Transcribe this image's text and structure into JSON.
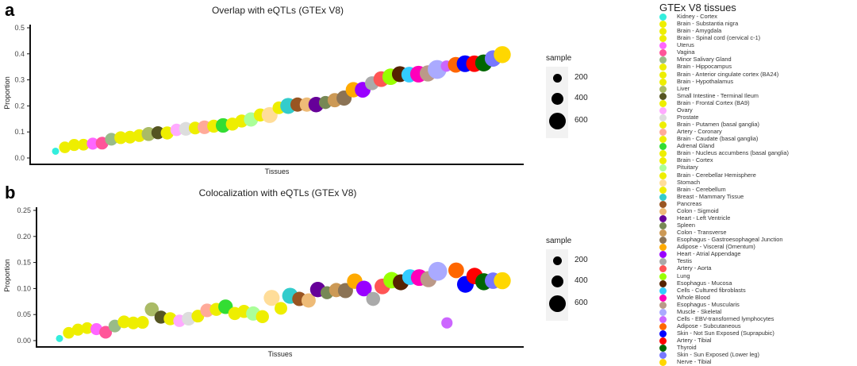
{
  "figure": {
    "panel_a": {
      "letter": "a",
      "title": "Overlap with eQTLs (GTEx V8)",
      "xlabel": "Tissues",
      "ylabel": "Proportion"
    },
    "panel_b": {
      "letter": "b",
      "title": "Colocalization with eQTLs (GTEx V8)",
      "xlabel": "Tissues",
      "ylabel": "Proportion"
    },
    "size_legend": {
      "title": "sample",
      "items": [
        {
          "label": "200",
          "r": 5
        },
        {
          "label": "400",
          "r": 7
        },
        {
          "label": "600",
          "r": 9
        }
      ]
    },
    "tissue_legend_title": "GTEx V8 tissues"
  },
  "chart_data": [
    {
      "type": "scatter",
      "title": "Overlap with eQTLs (GTEx V8)",
      "xlabel": "Tissues",
      "ylabel": "Proportion",
      "ylim": [
        0,
        0.5
      ],
      "yticks": [
        "0.0",
        "0.1",
        "0.2",
        "0.3",
        "0.4",
        "0.5"
      ],
      "grid": false,
      "size_legend": {
        "title": "sample",
        "values": [
          200,
          400,
          600
        ]
      },
      "categories": [
        "Kidney - Cortex",
        "Brain - Substantia nigra",
        "Brain - Amygdala",
        "Brain - Spinal cord (cervical c-1)",
        "Uterus",
        "Vagina",
        "Minor Salivary Gland",
        "Brain - Hippocampus",
        "Brain - Anterior cingulate cortex (BA24)",
        "Brain - Hypothalamus",
        "Liver",
        "Small Intestine - Terminal Ileum",
        "Brain - Frontal Cortex (BA9)",
        "Ovary",
        "Prostate",
        "Brain - Putamen (basal ganglia)",
        "Artery - Coronary",
        "Brain - Caudate (basal ganglia)",
        "Adrenal Gland",
        "Brain - Nucleus accumbens (basal ganglia)",
        "Brain - Cortex",
        "Pituitary",
        "Brain - Cerebellar Hemisphere",
        "Stomach",
        "Brain - Cerebellum",
        "Breast - Mammary Tissue",
        "Pancreas",
        "Colon - Sigmoid",
        "Heart - Left Ventricle",
        "Spleen",
        "Colon - Transverse",
        "Esophagus - Gastroesophageal Junction",
        "Adipose - Visceral (Omentum)",
        "Heart - Atrial Appendage",
        "Testis",
        "Artery - Aorta",
        "Lung",
        "Esophagus - Mucosa",
        "Cells - Cultured fibroblasts",
        "Whole Blood",
        "Esophagus - Muscularis",
        "Muscle - Skeletal",
        "Cells - EBV-transformed lymphocytes",
        "Adipose - Subcutaneous",
        "Skin - Not Sun Exposed (Suprapubic)",
        "Artery - Tibial",
        "Thyroid",
        "Skin - Sun Exposed (Lower leg)",
        "Nerve - Tibial"
      ],
      "values": [
        0.026,
        0.041,
        0.05,
        0.051,
        0.055,
        0.057,
        0.072,
        0.078,
        0.08,
        0.086,
        0.092,
        0.097,
        0.096,
        0.108,
        0.112,
        0.115,
        0.118,
        0.122,
        0.125,
        0.13,
        0.142,
        0.148,
        0.165,
        0.165,
        0.193,
        0.2,
        0.205,
        0.205,
        0.205,
        0.213,
        0.222,
        0.23,
        0.262,
        0.262,
        0.287,
        0.303,
        0.312,
        0.322,
        0.32,
        0.322,
        0.325,
        0.34,
        0.353,
        0.358,
        0.362,
        0.362,
        0.365,
        0.382,
        0.397
      ],
      "sizes": [
        60,
        160,
        170,
        160,
        170,
        190,
        190,
        190,
        190,
        190,
        230,
        200,
        200,
        180,
        220,
        190,
        220,
        200,
        250,
        200,
        200,
        240,
        200,
        300,
        190,
        300,
        240,
        240,
        280,
        200,
        240,
        270,
        280,
        290,
        230,
        290,
        320,
        300,
        290,
        330,
        310,
        420,
        150,
        290,
        330,
        320,
        340,
        320,
        340
      ]
    },
    {
      "type": "scatter",
      "title": "Colocalization with eQTLs (GTEx V8)",
      "xlabel": "Tissues",
      "ylabel": "Proportion",
      "ylim": [
        0,
        0.25
      ],
      "yticks": [
        "0.00",
        "0.05",
        "0.10",
        "0.15",
        "0.20",
        "0.25"
      ],
      "grid": false,
      "size_legend": {
        "title": "sample",
        "values": [
          200,
          400,
          600
        ]
      },
      "categories": [
        "Kidney - Cortex",
        "Brain - Substantia nigra",
        "Brain - Amygdala",
        "Brain - Spinal cord (cervical c-1)",
        "Uterus",
        "Vagina",
        "Minor Salivary Gland",
        "Brain - Hippocampus",
        "Brain - Anterior cingulate cortex (BA24)",
        "Brain - Hypothalamus",
        "Liver",
        "Small Intestine - Terminal Ileum",
        "Brain - Frontal Cortex (BA9)",
        "Ovary",
        "Prostate",
        "Brain - Putamen (basal ganglia)",
        "Artery - Coronary",
        "Brain - Caudate (basal ganglia)",
        "Adrenal Gland",
        "Brain - Nucleus accumbens (basal ganglia)",
        "Brain - Cortex",
        "Pituitary",
        "Brain - Cerebellar Hemisphere",
        "Stomach",
        "Brain - Cerebellum",
        "Breast - Mammary Tissue",
        "Pancreas",
        "Colon - Sigmoid",
        "Heart - Left Ventricle",
        "Spleen",
        "Colon - Transverse",
        "Esophagus - Gastroesophageal Junction",
        "Adipose - Visceral (Omentum)",
        "Heart - Atrial Appendage",
        "Testis",
        "Artery - Aorta",
        "Lung",
        "Esophagus - Mucosa",
        "Cells - Cultured fibroblasts",
        "Whole Blood",
        "Esophagus - Muscularis",
        "Muscle - Skeletal",
        "Cells - EBV-transformed lymphocytes",
        "Adipose - Subcutaneous",
        "Skin - Not Sun Exposed (Suprapubic)",
        "Artery - Tibial",
        "Thyroid",
        "Skin - Sun Exposed (Lower leg)",
        "Nerve - Tibial"
      ],
      "values": [
        0.004,
        0.015,
        0.021,
        0.024,
        0.022,
        0.016,
        0.028,
        0.036,
        0.034,
        0.035,
        0.06,
        0.045,
        0.042,
        0.038,
        0.042,
        0.047,
        0.058,
        0.06,
        0.065,
        0.052,
        0.056,
        0.052,
        0.046,
        0.082,
        0.062,
        0.086,
        0.08,
        0.077,
        0.098,
        0.092,
        0.097,
        0.096,
        0.114,
        0.1,
        0.08,
        0.104,
        0.116,
        0.112,
        0.122,
        0.121,
        0.118,
        0.133,
        0.034,
        0.135,
        0.108,
        0.124,
        0.113,
        0.115,
        0.115
      ],
      "sizes": [
        60,
        160,
        170,
        160,
        170,
        190,
        190,
        190,
        190,
        190,
        230,
        200,
        200,
        180,
        220,
        190,
        220,
        200,
        250,
        200,
        200,
        240,
        200,
        300,
        190,
        300,
        240,
        240,
        280,
        200,
        240,
        270,
        280,
        290,
        230,
        290,
        320,
        300,
        290,
        330,
        310,
        420,
        150,
        290,
        330,
        320,
        340,
        320,
        340
      ]
    }
  ],
  "tissues": [
    {
      "name": "Kidney - Cortex",
      "color": "#33eedd"
    },
    {
      "name": "Brain - Substantia nigra",
      "color": "#eeee00"
    },
    {
      "name": "Brain - Amygdala",
      "color": "#eeee00"
    },
    {
      "name": "Brain - Spinal cord (cervical c-1)",
      "color": "#eeee00"
    },
    {
      "name": "Uterus",
      "color": "#ff66ff"
    },
    {
      "name": "Vagina",
      "color": "#ff5599"
    },
    {
      "name": "Minor Salivary Gland",
      "color": "#99bb88"
    },
    {
      "name": "Brain - Hippocampus",
      "color": "#eeee00"
    },
    {
      "name": "Brain - Anterior cingulate cortex (BA24)",
      "color": "#eeee00"
    },
    {
      "name": "Brain - Hypothalamus",
      "color": "#eeee00"
    },
    {
      "name": "Liver",
      "color": "#aabb66"
    },
    {
      "name": "Small Intestine - Terminal Ileum",
      "color": "#555522"
    },
    {
      "name": "Brain - Frontal Cortex (BA9)",
      "color": "#eeee00"
    },
    {
      "name": "Ovary",
      "color": "#ffaaff"
    },
    {
      "name": "Prostate",
      "color": "#dddddd"
    },
    {
      "name": "Brain - Putamen (basal ganglia)",
      "color": "#eeee00"
    },
    {
      "name": "Artery - Coronary",
      "color": "#ffaa99"
    },
    {
      "name": "Brain - Caudate (basal ganglia)",
      "color": "#eeee00"
    },
    {
      "name": "Adrenal Gland",
      "color": "#33dd33"
    },
    {
      "name": "Brain - Nucleus accumbens (basal ganglia)",
      "color": "#eeee00"
    },
    {
      "name": "Brain - Cortex",
      "color": "#eeee00"
    },
    {
      "name": "Pituitary",
      "color": "#aaff99"
    },
    {
      "name": "Brain - Cerebellar Hemisphere",
      "color": "#eeee00"
    },
    {
      "name": "Stomach",
      "color": "#ffdd99"
    },
    {
      "name": "Brain - Cerebellum",
      "color": "#eeee00"
    },
    {
      "name": "Breast - Mammary Tissue",
      "color": "#33cccc"
    },
    {
      "name": "Pancreas",
      "color": "#995522"
    },
    {
      "name": "Colon - Sigmoid",
      "color": "#eebb77"
    },
    {
      "name": "Heart - Left Ventricle",
      "color": "#660099"
    },
    {
      "name": "Spleen",
      "color": "#778855"
    },
    {
      "name": "Colon - Transverse",
      "color": "#cc9955"
    },
    {
      "name": "Esophagus - Gastroesophageal Junction",
      "color": "#8b7355"
    },
    {
      "name": "Adipose - Visceral (Omentum)",
      "color": "#ffaa00"
    },
    {
      "name": "Heart - Atrial Appendage",
      "color": "#9900ff"
    },
    {
      "name": "Testis",
      "color": "#aaaaaa"
    },
    {
      "name": "Artery - Aorta",
      "color": "#ff5555"
    },
    {
      "name": "Lung",
      "color": "#99ff00"
    },
    {
      "name": "Esophagus - Mucosa",
      "color": "#552200"
    },
    {
      "name": "Cells - Cultured fibroblasts",
      "color": "#33ccff"
    },
    {
      "name": "Whole Blood",
      "color": "#ff00bb"
    },
    {
      "name": "Esophagus - Muscularis",
      "color": "#bb9988"
    },
    {
      "name": "Muscle - Skeletal",
      "color": "#aaaaff"
    },
    {
      "name": "Cells - EBV-transformed lymphocytes",
      "color": "#cc66ff"
    },
    {
      "name": "Adipose - Subcutaneous",
      "color": "#ff6600"
    },
    {
      "name": "Skin - Not Sun Exposed (Suprapubic)",
      "color": "#0000ff"
    },
    {
      "name": "Artery - Tibial",
      "color": "#ff0000"
    },
    {
      "name": "Thyroid",
      "color": "#006600"
    },
    {
      "name": "Skin - Sun Exposed (Lower leg)",
      "color": "#7777ff"
    },
    {
      "name": "Nerve - Tibial",
      "color": "#ffd700"
    }
  ]
}
